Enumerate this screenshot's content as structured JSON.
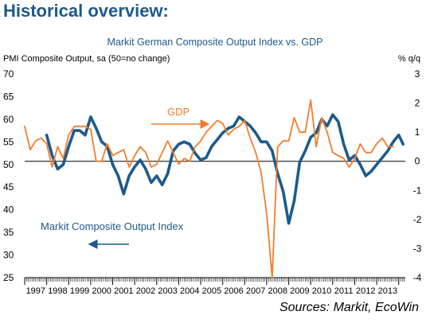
{
  "heading": "Historical overview:",
  "sources": "Sources: Markit, EcoWin",
  "colors": {
    "pmi": "#1d5a8a",
    "gdp": "#f07d2c",
    "heading": "#1d5a8a",
    "zero_line": "#000000"
  },
  "chart_data": {
    "type": "line",
    "title": "Markit German Composite Output Index vs. GDP",
    "ylabel_left": "PMI Composite Output, sa (50=no change)",
    "ylabel_right": "% q/q",
    "y_left_lim": [
      25,
      70
    ],
    "y_left_ticks": [
      "70",
      "65",
      "60",
      "55",
      "50",
      "45",
      "40",
      "35",
      "30",
      "25"
    ],
    "y_right_lim": [
      -4,
      3
    ],
    "y_right_ticks": [
      "3",
      "2",
      "1",
      "0",
      "-1",
      "-2",
      "-3",
      "-4"
    ],
    "x_lim": [
      1997.0,
      2014.3
    ],
    "x_tick_labels": [
      "1997",
      "1998",
      "1999",
      "2000",
      "2001",
      "2002",
      "2003",
      "2004",
      "2005",
      "2006",
      "2007",
      "2008",
      "2009",
      "2010",
      "2011",
      "2012",
      "2013"
    ],
    "grid": false,
    "annotations": [
      {
        "text": "GDP",
        "series": "GDP"
      },
      {
        "text": "Markit Composite Output Index",
        "series": "Markit Composite Output Index"
      }
    ],
    "series": [
      {
        "name": "Markit Composite Output Index",
        "axis": "left",
        "x": [
          1998.0,
          1998.25,
          1998.5,
          1998.75,
          1999.0,
          1999.25,
          1999.5,
          1999.75,
          2000.0,
          2000.25,
          2000.5,
          2000.75,
          2001.0,
          2001.25,
          2001.5,
          2001.75,
          2002.0,
          2002.25,
          2002.5,
          2002.75,
          2003.0,
          2003.25,
          2003.5,
          2003.75,
          2004.0,
          2004.25,
          2004.5,
          2004.75,
          2005.0,
          2005.25,
          2005.5,
          2005.75,
          2006.0,
          2006.25,
          2006.5,
          2006.75,
          2007.0,
          2007.25,
          2007.5,
          2007.75,
          2008.0,
          2008.25,
          2008.5,
          2008.75,
          2009.0,
          2009.25,
          2009.5,
          2009.75,
          2010.0,
          2010.25,
          2010.5,
          2010.75,
          2011.0,
          2011.25,
          2011.5,
          2011.75,
          2012.0,
          2012.25,
          2012.5,
          2012.75,
          2013.0,
          2013.25,
          2013.5,
          2013.75,
          2014.0,
          2014.2
        ],
        "values": [
          56.5,
          52.0,
          49.0,
          50.0,
          54.0,
          57.5,
          57.5,
          56.5,
          60.5,
          58.0,
          55.0,
          54.0,
          50.0,
          47.5,
          43.5,
          47.5,
          49.5,
          51.0,
          49.0,
          46.0,
          47.5,
          45.5,
          48.0,
          53.0,
          54.5,
          55.0,
          54.5,
          52.5,
          51.0,
          51.5,
          54.0,
          55.5,
          57.0,
          58.0,
          58.5,
          60.5,
          59.5,
          58.5,
          57.0,
          55.0,
          55.0,
          53.0,
          48.0,
          44.0,
          37.0,
          42.0,
          50.5,
          53.0,
          56.0,
          57.0,
          60.0,
          58.5,
          61.0,
          59.5,
          54.5,
          51.0,
          52.0,
          50.0,
          47.5,
          48.5,
          50.0,
          51.5,
          53.0,
          55.0,
          56.5,
          54.5
        ]
      },
      {
        "name": "GDP",
        "axis": "right",
        "x": [
          1997.0,
          1997.25,
          1997.5,
          1997.75,
          1998.0,
          1998.25,
          1998.5,
          1998.75,
          1999.0,
          1999.25,
          1999.5,
          1999.75,
          2000.0,
          2000.25,
          2000.5,
          2000.75,
          2001.0,
          2001.25,
          2001.5,
          2001.75,
          2002.0,
          2002.25,
          2002.5,
          2002.75,
          2003.0,
          2003.25,
          2003.5,
          2003.75,
          2004.0,
          2004.25,
          2004.5,
          2004.75,
          2005.0,
          2005.25,
          2005.5,
          2005.75,
          2006.0,
          2006.25,
          2006.5,
          2006.75,
          2007.0,
          2007.25,
          2007.5,
          2007.75,
          2008.0,
          2008.25,
          2008.5,
          2008.75,
          2009.0,
          2009.25,
          2009.5,
          2009.75,
          2010.0,
          2010.25,
          2010.5,
          2010.75,
          2011.0,
          2011.25,
          2011.5,
          2011.75,
          2012.0,
          2012.25,
          2012.5,
          2012.75,
          2013.0,
          2013.25,
          2013.5,
          2013.75
        ],
        "values": [
          1.2,
          0.4,
          0.7,
          0.8,
          0.6,
          -0.2,
          0.5,
          0.1,
          0.9,
          1.2,
          1.2,
          1.2,
          1.1,
          0.0,
          0.0,
          0.6,
          0.2,
          0.3,
          0.4,
          -0.2,
          0.2,
          0.5,
          0.3,
          -0.2,
          -0.1,
          0.3,
          0.7,
          0.3,
          -0.1,
          0.1,
          0.0,
          0.5,
          0.7,
          1.0,
          1.2,
          1.4,
          1.3,
          0.9,
          1.1,
          1.2,
          1.4,
          0.8,
          0.3,
          -0.4,
          -1.8,
          -4.0,
          0.5,
          0.7,
          0.7,
          1.5,
          1.0,
          1.0,
          2.1,
          0.5,
          1.5,
          1.0,
          0.3,
          0.2,
          0.1,
          -0.2,
          0.1,
          0.6,
          0.3,
          0.3,
          0.6,
          0.8,
          0.5,
          0.5
        ]
      }
    ]
  }
}
